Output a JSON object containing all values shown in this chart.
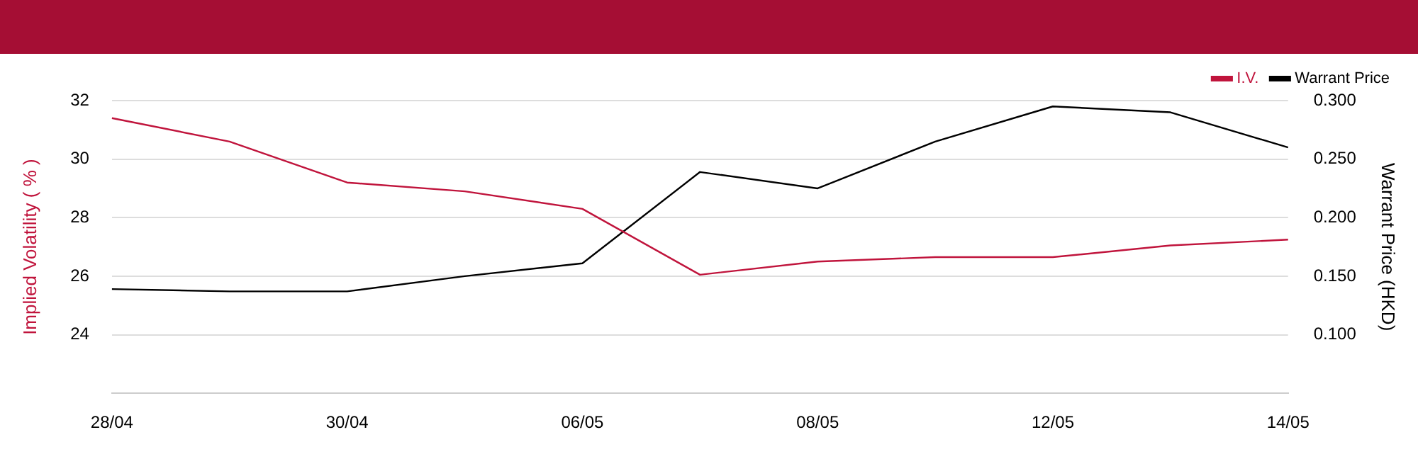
{
  "chart_data": {
    "type": "line",
    "categories": [
      "28/04",
      null,
      "30/04",
      null,
      "06/05",
      null,
      "08/05",
      null,
      "12/05",
      null,
      "14/05"
    ],
    "series": [
      {
        "name": "I.V.",
        "color": "#c0143c",
        "values": [
          31.4,
          30.6,
          29.2,
          28.9,
          28.3,
          26.05,
          26.5,
          26.65,
          26.65,
          27.05,
          27.25
        ]
      },
      {
        "name": "Warrant Price",
        "color": "#000000",
        "axis": "y2",
        "values": [
          0.139,
          0.137,
          0.137,
          0.15,
          0.161,
          0.239,
          0.225,
          0.265,
          0.295,
          0.29,
          0.26
        ]
      }
    ],
    "ylabel": "Implied Volatility ( % )",
    "y2label": "Warrant Price (HKD)",
    "ylim": [
      22,
      32
    ],
    "yticks": [
      24,
      26,
      28,
      30,
      32
    ],
    "y2lim": [
      0.05,
      0.3
    ],
    "y2ticks": [
      {
        "value": 0.1,
        "label": "0.100"
      },
      {
        "value": 0.15,
        "label": "0.150"
      },
      {
        "value": 0.2,
        "label": "0.200"
      },
      {
        "value": 0.25,
        "label": "0.250"
      },
      {
        "value": 0.3,
        "label": "0.300"
      }
    ],
    "grid": "y",
    "legend": "top right",
    "marker": "none",
    "line_style": "solid"
  }
}
